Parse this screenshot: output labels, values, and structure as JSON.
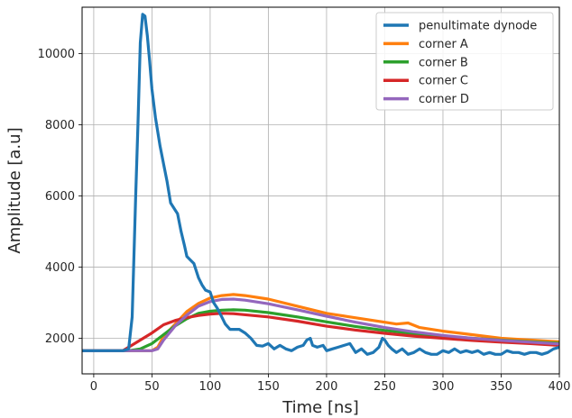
{
  "chart_data": {
    "type": "line",
    "xlabel": "Time [ns]",
    "ylabel": "Amplitude [a.u]",
    "xlim": [
      -10,
      400
    ],
    "ylim": [
      1000,
      11300
    ],
    "xticks": [
      0,
      50,
      100,
      150,
      200,
      250,
      300,
      350,
      400
    ],
    "yticks": [
      2000,
      4000,
      6000,
      8000,
      10000
    ],
    "grid": true,
    "legend_position": "top-right",
    "colors": {
      "penultimate dynode": "#1f77b4",
      "corner A": "#ff7f0e",
      "corner B": "#2ca02c",
      "corner C": "#d62728",
      "corner D": "#9467bd"
    },
    "series": [
      {
        "name": "corner A",
        "x": [
          -10,
          50,
          55,
          60,
          70,
          80,
          90,
          100,
          110,
          120,
          130,
          150,
          175,
          200,
          210,
          220,
          250,
          260,
          270,
          280,
          300,
          325,
          350,
          375,
          400
        ],
        "y": [
          1650,
          1650,
          1750,
          2050,
          2400,
          2750,
          2980,
          3130,
          3200,
          3230,
          3200,
          3100,
          2900,
          2700,
          2650,
          2600,
          2450,
          2400,
          2430,
          2300,
          2200,
          2100,
          2000,
          1950,
          1900
        ]
      },
      {
        "name": "corner B",
        "x": [
          -10,
          30,
          40,
          50,
          60,
          70,
          80,
          90,
          100,
          110,
          120,
          130,
          150,
          175,
          200,
          225,
          250,
          275,
          300,
          325,
          350,
          375,
          400
        ],
        "y": [
          1650,
          1650,
          1700,
          1850,
          2100,
          2350,
          2550,
          2700,
          2760,
          2790,
          2800,
          2790,
          2720,
          2600,
          2460,
          2330,
          2220,
          2130,
          2060,
          2000,
          1950,
          1900,
          1860
        ]
      },
      {
        "name": "corner C",
        "x": [
          -10,
          25,
          30,
          40,
          50,
          60,
          70,
          80,
          90,
          100,
          110,
          120,
          150,
          175,
          200,
          225,
          250,
          275,
          300,
          325,
          350,
          375,
          400
        ],
        "y": [
          1650,
          1650,
          1750,
          1950,
          2150,
          2380,
          2500,
          2580,
          2640,
          2680,
          2700,
          2690,
          2600,
          2480,
          2340,
          2230,
          2140,
          2060,
          2000,
          1940,
          1890,
          1850,
          1800
        ]
      },
      {
        "name": "corner D",
        "x": [
          -10,
          50,
          55,
          60,
          70,
          80,
          90,
          100,
          110,
          120,
          130,
          150,
          175,
          200,
          225,
          250,
          275,
          300,
          325,
          350,
          375,
          400
        ],
        "y": [
          1650,
          1650,
          1700,
          1950,
          2350,
          2650,
          2900,
          3030,
          3090,
          3100,
          3070,
          2970,
          2800,
          2620,
          2450,
          2300,
          2180,
          2080,
          2000,
          1940,
          1890,
          1840
        ]
      },
      {
        "name": "penultimate dynode",
        "x": [
          -10,
          25,
          30,
          33,
          36,
          38,
          40,
          42,
          44,
          46,
          48,
          50,
          53,
          57,
          60,
          63,
          66,
          70,
          72,
          75,
          78,
          80,
          83,
          86,
          90,
          93,
          96,
          100,
          103,
          106,
          110,
          113,
          117,
          120,
          125,
          130,
          135,
          140,
          145,
          150,
          155,
          160,
          165,
          170,
          175,
          180,
          183,
          186,
          188,
          192,
          197,
          200,
          205,
          210,
          215,
          220,
          225,
          230,
          235,
          240,
          245,
          248,
          250,
          253,
          256,
          260,
          265,
          270,
          275,
          280,
          285,
          290,
          295,
          300,
          305,
          310,
          315,
          320,
          325,
          330,
          335,
          340,
          345,
          350,
          355,
          360,
          365,
          370,
          375,
          380,
          385,
          390,
          395,
          400
        ],
        "y": [
          1650,
          1650,
          1700,
          2600,
          6000,
          8000,
          10300,
          11100,
          11050,
          10500,
          9800,
          9000,
          8200,
          7400,
          6900,
          6400,
          5800,
          5600,
          5500,
          5000,
          4600,
          4300,
          4200,
          4100,
          3700,
          3500,
          3350,
          3300,
          3000,
          2850,
          2600,
          2400,
          2250,
          2250,
          2250,
          2150,
          2000,
          1800,
          1780,
          1850,
          1700,
          1800,
          1700,
          1650,
          1750,
          1800,
          1950,
          2000,
          1800,
          1750,
          1800,
          1650,
          1700,
          1750,
          1800,
          1850,
          1600,
          1700,
          1550,
          1600,
          1750,
          2000,
          1950,
          1800,
          1700,
          1600,
          1700,
          1550,
          1600,
          1700,
          1600,
          1550,
          1550,
          1650,
          1600,
          1700,
          1600,
          1650,
          1600,
          1650,
          1550,
          1600,
          1550,
          1550,
          1650,
          1600,
          1600,
          1550,
          1600,
          1600,
          1550,
          1600,
          1700,
          1750
        ]
      }
    ],
    "legend_order": [
      "penultimate dynode",
      "corner A",
      "corner B",
      "corner C",
      "corner D"
    ]
  }
}
